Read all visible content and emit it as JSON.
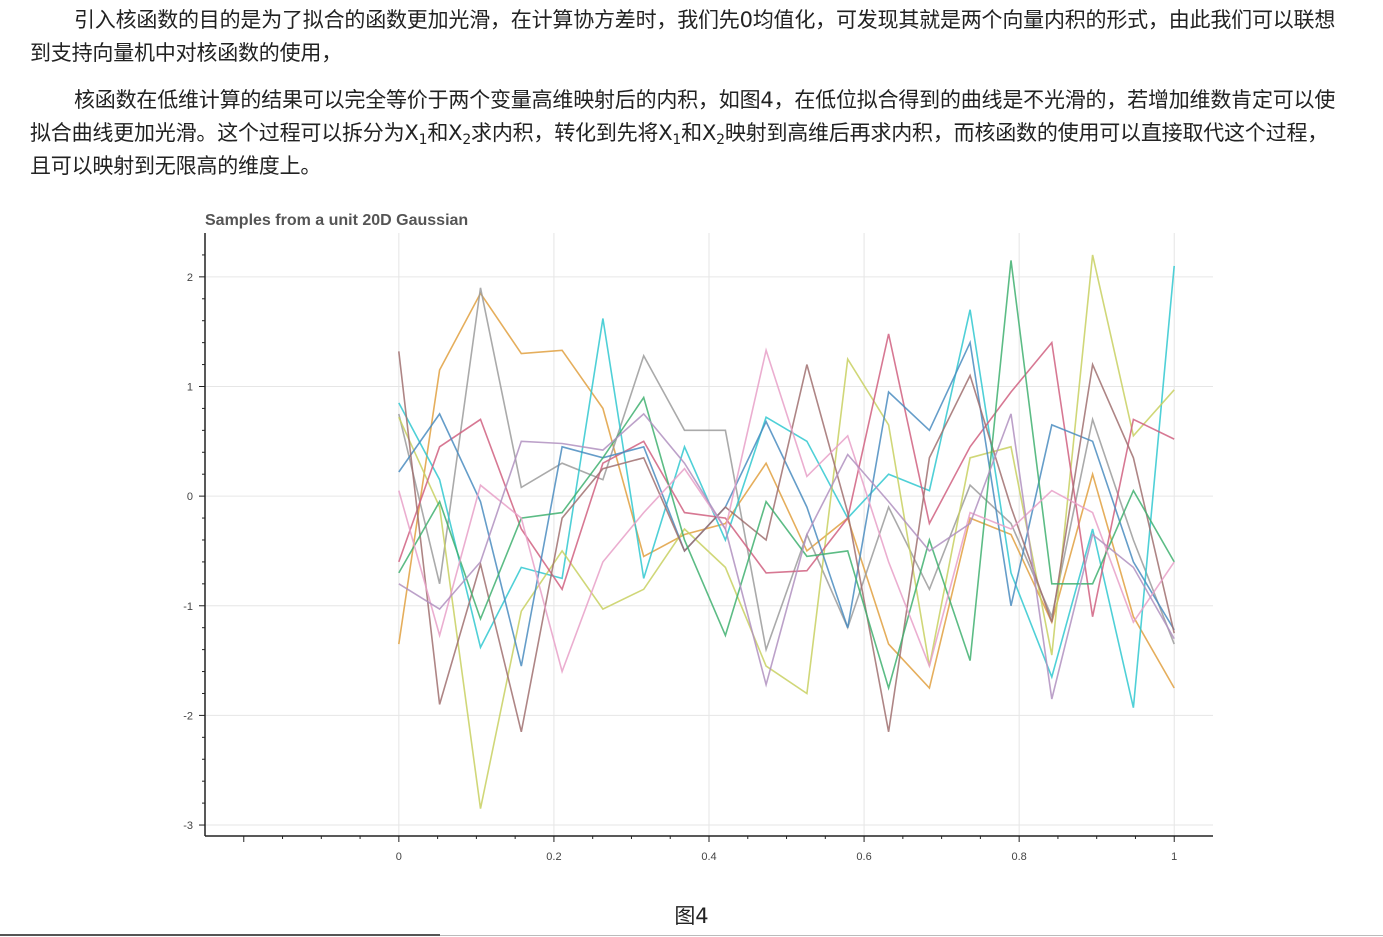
{
  "text": {
    "p1": "引入核函数的目的是为了拟合的函数更加光滑，在计算协方差时，我们先0均值化，可发现其就是两个向量内积的形式，由此我们可以联想到支持向量机中对核函数的使用，",
    "p2_a": "核函数在低维计算的结果可以完全等价于两个变量高维映射后的内积，如图4，在低位拟合得到的曲线是不光滑的，若增加维数肯定可以使拟合曲线更加光滑。这个过程可以拆分为X",
    "p2_sub1": "1",
    "p2_b": "和X",
    "p2_sub2": "2",
    "p2_c": "求内积，转化到先将X",
    "p2_sub3": "1",
    "p2_d": "和X",
    "p2_sub4": "2",
    "p2_e": "映射到高维后再求内积，而核函数的使用可以直接取代这个过程，且可以映射到无限高的维度上。",
    "caption": "图4"
  },
  "chart_data": {
    "type": "line",
    "title": "Samples from a unit 20D Gaussian",
    "xlabel": "",
    "ylabel": "",
    "xlim": [
      -0.25,
      1.05
    ],
    "ylim": [
      -3.1,
      2.4
    ],
    "grid": true,
    "x": [
      0,
      0.0526,
      0.1053,
      0.1579,
      0.2105,
      0.2632,
      0.3158,
      0.3684,
      0.4211,
      0.4737,
      0.5263,
      0.5789,
      0.6316,
      0.6842,
      0.7368,
      0.7895,
      0.8421,
      0.8947,
      0.9474,
      1.0
    ],
    "x_ticks": [
      "0",
      "0.2",
      "0.4",
      "0.6",
      "0.8",
      "1"
    ],
    "y_ticks": [
      "2",
      "1",
      "0",
      "-1",
      "-2",
      "-3"
    ],
    "series": [
      {
        "color": "#e0a040",
        "values": [
          -1.35,
          1.15,
          1.85,
          1.3,
          1.33,
          0.8,
          -0.55,
          -0.35,
          -0.25,
          0.3,
          -0.5,
          -0.2,
          -1.35,
          -1.75,
          -0.2,
          -0.35,
          -1.15,
          0.2,
          -1.1,
          -1.75
        ]
      },
      {
        "color": "#9b9b9b",
        "values": [
          0.75,
          -0.8,
          1.9,
          0.08,
          0.3,
          0.15,
          1.28,
          0.6,
          0.6,
          -1.4,
          -0.35,
          -1.2,
          -0.1,
          -0.85,
          0.1,
          -0.25,
          -1.1,
          0.7,
          -0.4,
          -1.35
        ]
      },
      {
        "color": "#30c8d0",
        "values": [
          0.85,
          0.15,
          -1.38,
          -0.65,
          -0.75,
          1.62,
          -0.75,
          0.45,
          -0.4,
          0.72,
          0.5,
          -0.2,
          0.2,
          0.05,
          1.7,
          -0.7,
          -1.65,
          -0.3,
          -1.93,
          2.1
        ]
      },
      {
        "color": "#c8d060",
        "values": [
          0.72,
          -0.1,
          -2.85,
          -1.05,
          -0.5,
          -1.03,
          -0.85,
          -0.3,
          -0.65,
          -1.55,
          -1.8,
          1.25,
          0.65,
          -1.55,
          0.35,
          0.45,
          -1.45,
          2.2,
          0.55,
          0.97
        ]
      },
      {
        "color": "#d06080",
        "values": [
          -0.6,
          0.45,
          0.7,
          -0.3,
          -0.85,
          0.3,
          0.5,
          -0.15,
          -0.2,
          -0.7,
          -0.68,
          -0.2,
          1.48,
          -0.25,
          0.45,
          0.95,
          1.4,
          -1.1,
          0.7,
          0.52
        ]
      },
      {
        "color": "#4a8cc0",
        "values": [
          0.22,
          0.75,
          -0.05,
          -1.55,
          0.45,
          0.35,
          0.45,
          -0.5,
          -0.1,
          0.68,
          -0.1,
          -1.2,
          0.95,
          0.6,
          1.4,
          -1.0,
          0.65,
          0.5,
          -0.6,
          -1.22
        ]
      },
      {
        "color": "#a07070",
        "values": [
          1.32,
          -1.9,
          -0.62,
          -2.15,
          -0.2,
          0.25,
          0.35,
          -0.5,
          -0.1,
          -0.4,
          1.2,
          -0.15,
          -2.15,
          0.35,
          1.1,
          -0.1,
          -1.15,
          1.2,
          0.35,
          -1.25
        ]
      },
      {
        "color": "#40b070",
        "values": [
          -0.7,
          -0.05,
          -1.12,
          -0.2,
          -0.15,
          0.35,
          0.9,
          -0.4,
          -1.27,
          -0.05,
          -0.55,
          -0.5,
          -1.75,
          -0.4,
          -1.5,
          2.15,
          -0.8,
          -0.8,
          0.05,
          -0.6
        ]
      },
      {
        "color": "#e8a0c8",
        "values": [
          0.05,
          -1.27,
          0.1,
          -0.2,
          -1.6,
          -0.6,
          -0.15,
          0.25,
          -0.3,
          1.33,
          0.18,
          0.55,
          -0.6,
          -1.55,
          -0.15,
          -0.3,
          0.05,
          -0.15,
          -1.15,
          -0.6
        ]
      },
      {
        "color": "#b090c0",
        "values": [
          -0.8,
          -1.03,
          -0.6,
          0.5,
          0.48,
          0.42,
          0.75,
          0.3,
          -0.3,
          -1.72,
          -0.35,
          0.38,
          -0.05,
          -0.5,
          -0.25,
          0.75,
          -1.85,
          -0.35,
          -0.65,
          -1.3
        ]
      }
    ]
  }
}
